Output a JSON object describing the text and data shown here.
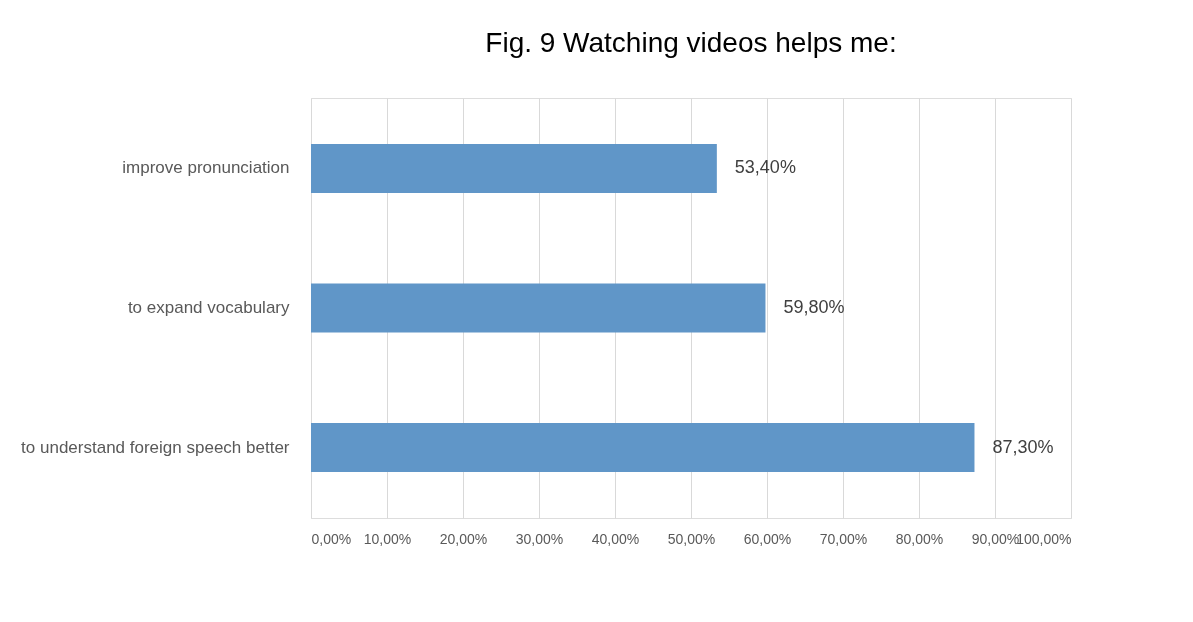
{
  "chart_data": {
    "type": "bar",
    "orientation": "horizontal",
    "title": "Fig. 9 Watching videos helps me:",
    "categories": [
      "improve pronunciation",
      "to expand vocabulary",
      "to understand foreign speech better"
    ],
    "values": [
      53.4,
      59.8,
      87.3
    ],
    "value_labels": [
      "53,40%",
      "59,80%",
      "87,30%"
    ],
    "color": "#6096c8",
    "xlim": [
      0,
      100
    ],
    "xticks": [
      {
        "value": 0,
        "label": "0,00%"
      },
      {
        "value": 10,
        "label": "10,00%"
      },
      {
        "value": 20,
        "label": "20,00%"
      },
      {
        "value": 30,
        "label": "30,00%"
      },
      {
        "value": 40,
        "label": "40,00%"
      },
      {
        "value": 50,
        "label": "50,00%"
      },
      {
        "value": 60,
        "label": "60,00%"
      },
      {
        "value": 70,
        "label": "70,00%"
      },
      {
        "value": 80,
        "label": "80,00%"
      },
      {
        "value": 90,
        "label": "90,00%"
      },
      {
        "value": 100,
        "label": "100,00%"
      }
    ],
    "grid": "x"
  }
}
